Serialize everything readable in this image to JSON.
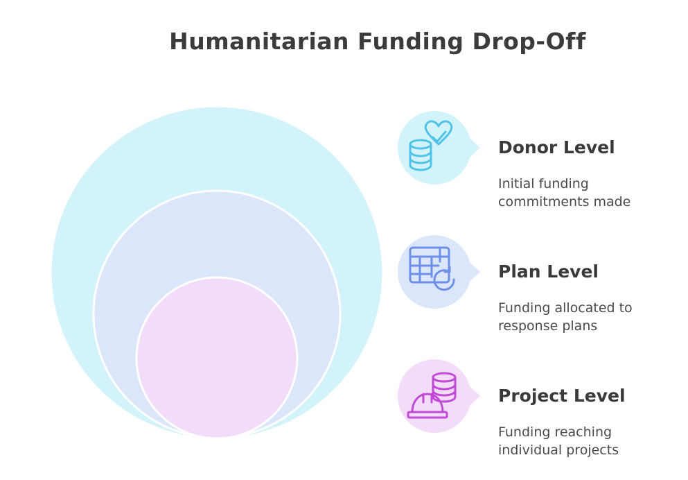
{
  "title": "Humanitarian Funding Drop-Off",
  "colors": {
    "donor_fill": "#d3f3fb",
    "plan_fill": "#dce6fb",
    "project_fill": "#f3dcfa",
    "donor_icon": "#4fc3e8",
    "plan_icon": "#6d8fe6",
    "project_icon": "#c04ad6",
    "text": "#3a3a3a"
  },
  "levels": [
    {
      "title": "Donor Level",
      "description": "Initial funding commitments made",
      "icon": "coins-heart-icon"
    },
    {
      "title": "Plan Level",
      "description": "Funding allocated to response plans",
      "icon": "spreadsheet-refresh-icon"
    },
    {
      "title": "Project Level",
      "description": "Funding reaching individual projects",
      "icon": "hardhat-coins-icon"
    }
  ]
}
